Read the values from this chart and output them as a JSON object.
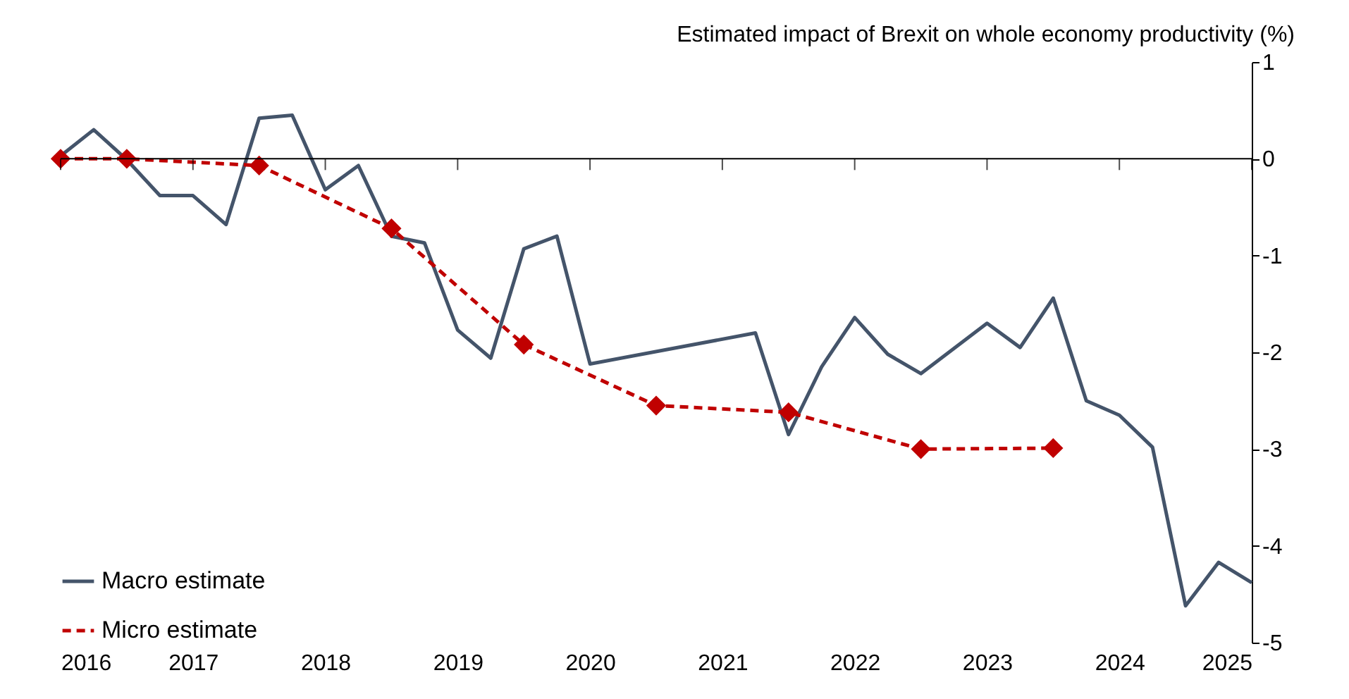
{
  "chart_data": {
    "type": "line",
    "ylabel": "Estimated impact of Brexit on whole economy productivity (%)",
    "xlim": [
      2016,
      2025
    ],
    "xticks": [
      2016,
      2017,
      2018,
      2019,
      2020,
      2021,
      2022,
      2023,
      2024,
      2025
    ],
    "ylim": [
      -5,
      1
    ],
    "yticks": [
      -5,
      -4,
      -3,
      -2,
      -1,
      0,
      1
    ],
    "grid": false,
    "legend": "bottom left",
    "ref_lines": [
      {
        "axis": "y",
        "value": 0
      }
    ],
    "series": [
      {
        "name": "Macro estimate",
        "color": "#44546a",
        "marker": "none",
        "line_style": "solid",
        "x": [
          2016,
          2016.25,
          2016.5,
          2016.75,
          2017,
          2017.25,
          2017.5,
          2017.75,
          2018,
          2018.25,
          2018.5,
          2018.75,
          2019,
          2019.25,
          2019.5,
          2019.75,
          2020,
          2021.25,
          2021.5,
          2021.75,
          2022,
          2022.25,
          2022.5,
          2022.75,
          2023,
          2023.25,
          2023.5,
          2023.75,
          2024,
          2024.25,
          2024.5,
          2024.75,
          2025
        ],
        "values": [
          0.03,
          0.3,
          -0.01,
          -0.38,
          -0.38,
          -0.68,
          0.42,
          0.45,
          -0.32,
          -0.07,
          -0.8,
          -0.87,
          -1.77,
          -2.06,
          -0.93,
          -0.8,
          -2.12,
          -1.8,
          -2.85,
          -2.15,
          -1.64,
          -2.02,
          -2.22,
          -1.96,
          -1.7,
          -1.95,
          -1.44,
          -2.5,
          -2.65,
          -2.98,
          -4.62,
          -4.17,
          -4.38
        ]
      },
      {
        "name": "Micro estimate",
        "color": "#c00000",
        "marker": "diamond",
        "line_style": "dashed",
        "x": [
          2016,
          2016.5,
          2017.5,
          2018.5,
          2019.5,
          2020.5,
          2021.5,
          2022.5,
          2023.5
        ],
        "values": [
          0,
          0,
          -0.07,
          -0.72,
          -1.92,
          -2.55,
          -2.62,
          -3.0,
          -2.99
        ]
      }
    ]
  }
}
